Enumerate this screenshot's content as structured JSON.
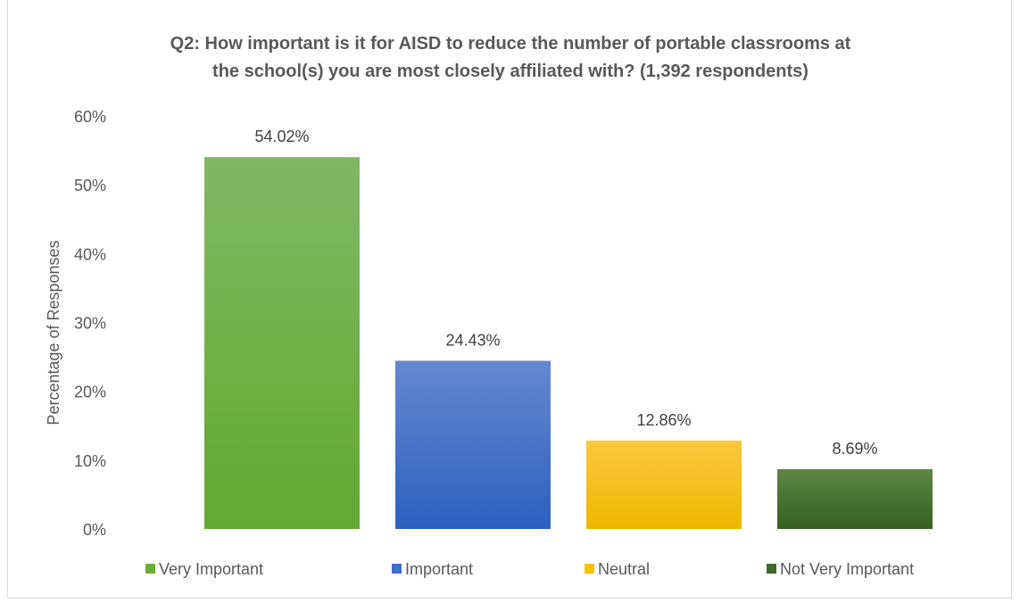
{
  "chart_data": {
    "type": "bar",
    "title_lines": [
      "Q2: How important is it for AISD to reduce the number of portable classrooms at",
      "the school(s) you are most closely affiliated with? (1,392 respondents)"
    ],
    "ylabel": "Percentage of Responses",
    "xlabel": "",
    "ylim": [
      0,
      60
    ],
    "yticks": [
      "0%",
      "10%",
      "20%",
      "30%",
      "40%",
      "50%",
      "60%"
    ],
    "grid": false,
    "legend_position": "bottom",
    "categories": [
      "Very Important",
      "Important",
      "Neutral",
      "Not Very Important"
    ],
    "values": [
      54.02,
      24.43,
      12.86,
      8.69
    ],
    "data_labels": [
      "54.02%",
      "24.43%",
      "12.86%",
      "8.69%"
    ],
    "colors": [
      "#6aae3c",
      "#3d6dc9",
      "#ffc000",
      "#3e6b2b"
    ],
    "gradients": [
      [
        "#80b965",
        "#62a930"
      ],
      [
        "#6589d0",
        "#2e5fbe"
      ],
      [
        "#fdc741",
        "#ecb800"
      ],
      [
        "#5e8646",
        "#375f22"
      ]
    ]
  }
}
